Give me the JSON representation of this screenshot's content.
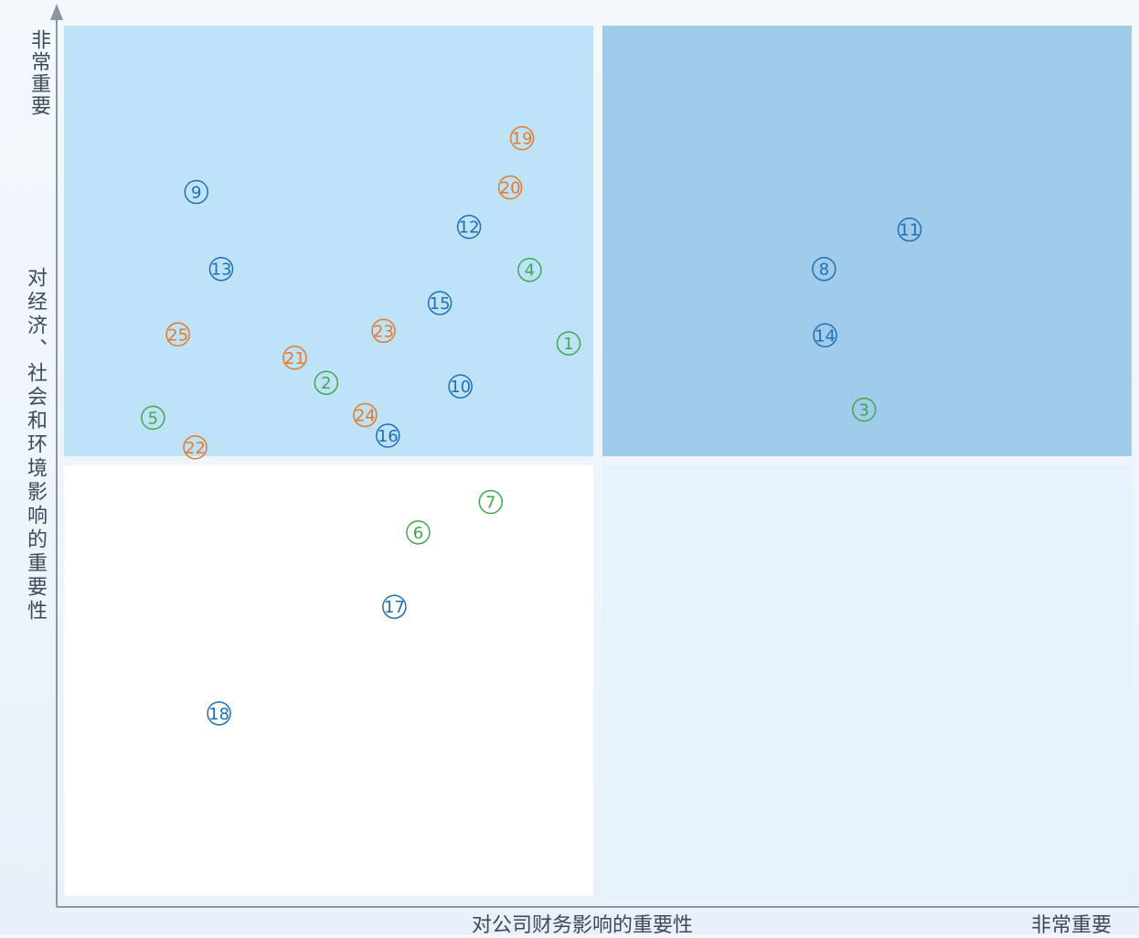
{
  "chart_data": {
    "type": "scatter",
    "title": "",
    "xlabel": "对公司财务影响的重要性",
    "ylabel": "对经济、社会和环境影响的重要性",
    "x_high_label": "非常重要",
    "y_high_label": "非常重要",
    "xlim": [
      0,
      100
    ],
    "ylim": [
      0,
      100
    ],
    "grid": false,
    "legend": "none",
    "quadrants": [
      {
        "id": "top-left",
        "color": "#bee3f8"
      },
      {
        "id": "top-right",
        "color": "#a0cbeb"
      },
      {
        "id": "bottom-left",
        "color": "#ffffff"
      },
      {
        "id": "bottom-right",
        "color": "#e6f3fd"
      }
    ],
    "color_groups": {
      "blue": "#1f6fb6",
      "green": "#3fa84f",
      "orange": "#e6782a"
    },
    "points": [
      {
        "label": "①",
        "group": "green",
        "x": 47.3,
        "y": 62.9
      },
      {
        "label": "②",
        "group": "green",
        "x": 24.9,
        "y": 58.5
      },
      {
        "label": "③",
        "group": "green",
        "x": 74.6,
        "y": 55.5
      },
      {
        "label": "④",
        "group": "green",
        "x": 43.7,
        "y": 71.1
      },
      {
        "label": "⑤",
        "group": "green",
        "x": 8.9,
        "y": 54.6
      },
      {
        "label": "⑥",
        "group": "green",
        "x": 33.4,
        "y": 41.8
      },
      {
        "label": "⑦",
        "group": "green",
        "x": 40.1,
        "y": 45.2
      },
      {
        "label": "⑧",
        "group": "blue",
        "x": 70.9,
        "y": 71.2
      },
      {
        "label": "⑨",
        "group": "blue",
        "x": 12.9,
        "y": 79.8
      },
      {
        "label": "⑩",
        "group": "blue",
        "x": 37.3,
        "y": 58.1
      },
      {
        "label": "⑪",
        "group": "blue",
        "x": 78.8,
        "y": 75.6
      },
      {
        "label": "⑫",
        "group": "blue",
        "x": 38.1,
        "y": 75.9
      },
      {
        "label": "⑬",
        "group": "blue",
        "x": 15.2,
        "y": 71.2
      },
      {
        "label": "⑭",
        "group": "blue",
        "x": 71.0,
        "y": 63.8
      },
      {
        "label": "⑮",
        "group": "blue",
        "x": 35.4,
        "y": 67.4
      },
      {
        "label": "⑯",
        "group": "blue",
        "x": 30.6,
        "y": 52.6
      },
      {
        "label": "⑰",
        "group": "blue",
        "x": 31.2,
        "y": 33.5
      },
      {
        "label": "⑱",
        "group": "blue",
        "x": 15.0,
        "y": 21.6
      },
      {
        "label": "⑲",
        "group": "orange",
        "x": 43.0,
        "y": 85.8
      },
      {
        "label": "⑳",
        "group": "orange",
        "x": 41.9,
        "y": 80.3
      },
      {
        "label": "㉑",
        "group": "orange",
        "x": 22.0,
        "y": 61.3
      },
      {
        "label": "㉒",
        "group": "orange",
        "x": 12.8,
        "y": 51.3
      },
      {
        "label": "㉓",
        "group": "orange",
        "x": 30.2,
        "y": 64.3
      },
      {
        "label": "㉔",
        "group": "orange",
        "x": 28.5,
        "y": 54.9
      },
      {
        "label": "㉕",
        "group": "orange",
        "x": 11.2,
        "y": 63.9
      }
    ]
  }
}
